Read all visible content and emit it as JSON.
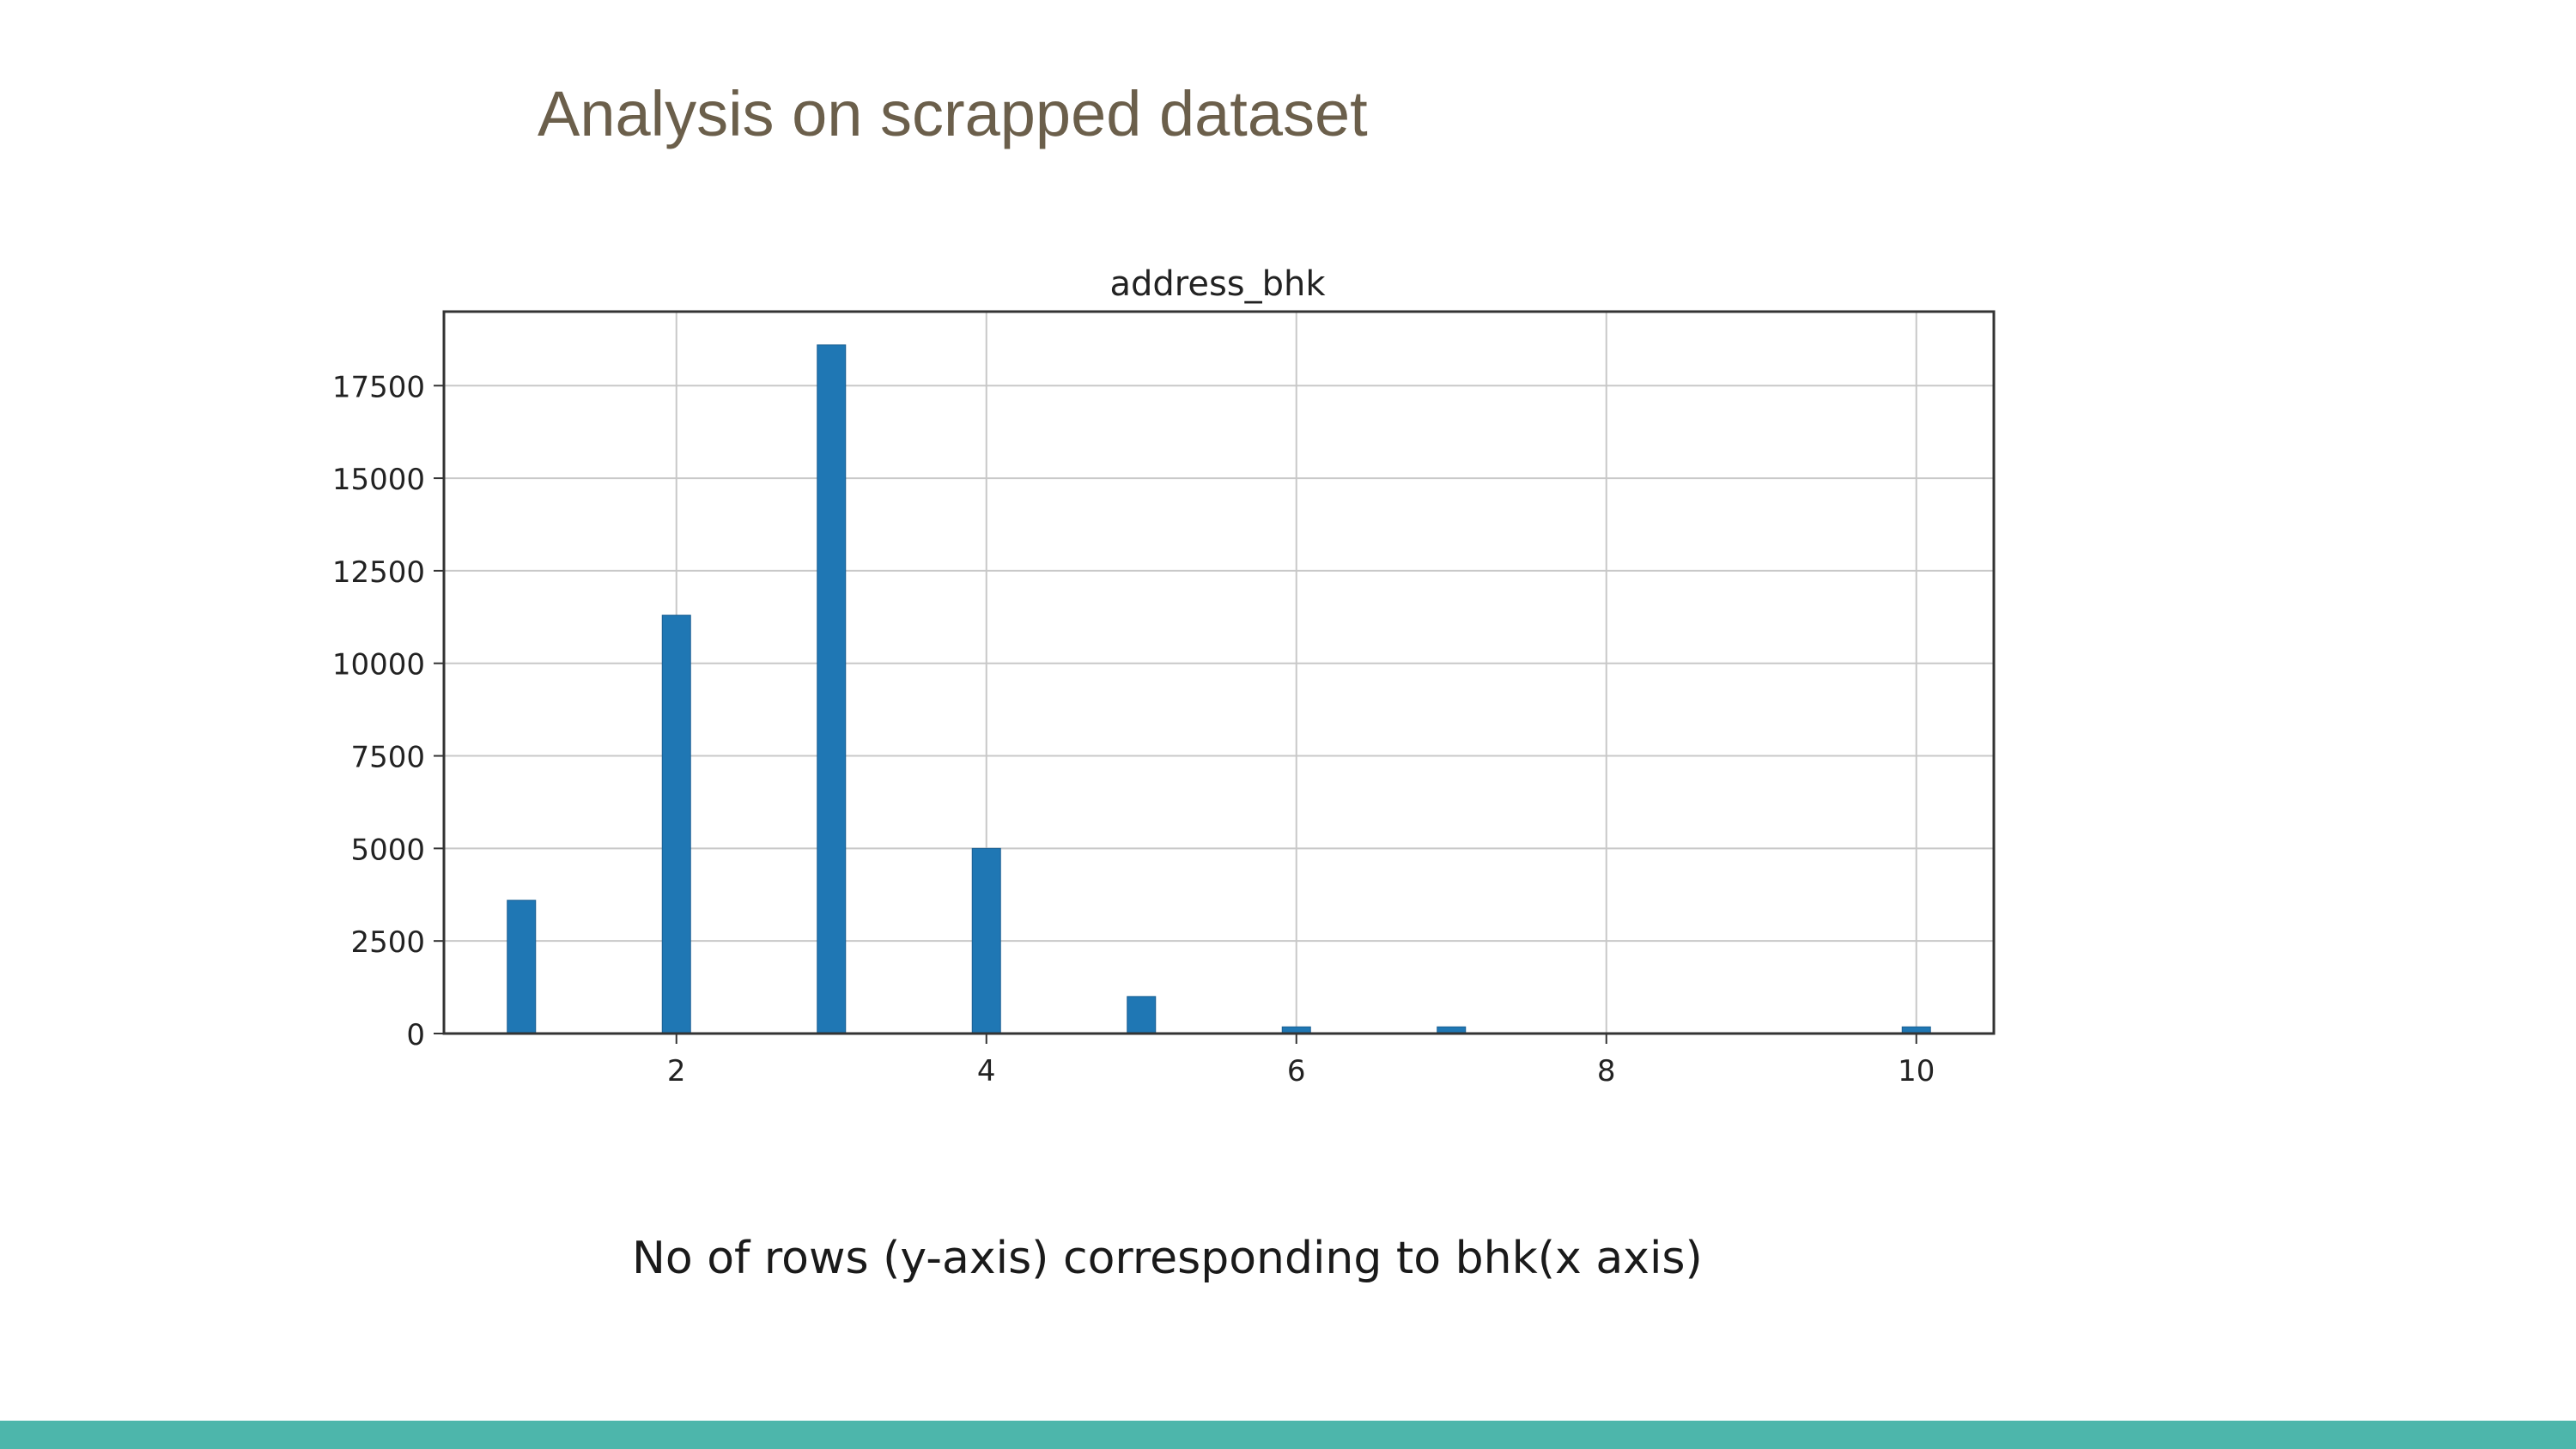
{
  "slide": {
    "title": "Analysis on scrapped dataset",
    "caption": "No of rows (y-axis) corresponding to bhk(x axis)",
    "footer_color": "#4db6ab"
  },
  "chart_data": {
    "type": "bar",
    "title": "address_bhk",
    "xlabel": "",
    "ylabel": "",
    "x": [
      1,
      2,
      3,
      4,
      5,
      6,
      7,
      10
    ],
    "values": [
      3600,
      11300,
      18600,
      5000,
      1000,
      180,
      180,
      180
    ],
    "xlim": [
      0.5,
      10.5
    ],
    "ylim": [
      0,
      19500
    ],
    "xticks": [
      2,
      4,
      6,
      8,
      10
    ],
    "yticks": [
      0,
      2500,
      5000,
      7500,
      10000,
      12500,
      15000,
      17500
    ],
    "grid": true,
    "bar_color": "#1f77b4"
  }
}
